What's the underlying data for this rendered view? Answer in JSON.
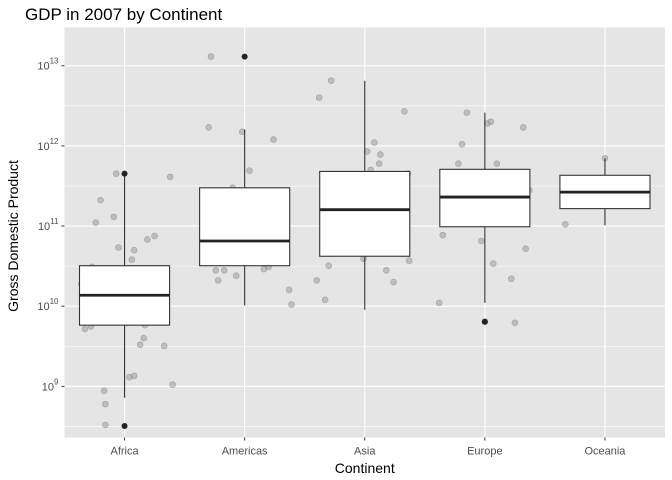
{
  "chart_data": {
    "type": "boxplot",
    "title": "GDP in 2007 by Continent",
    "xlabel": "Continent",
    "ylabel": "Gross Domestic Product",
    "y_scale": "log10",
    "ylim": [
      230000000.0,
      30000000000000.0
    ],
    "y_ticks": [
      {
        "value": 1000000000.0,
        "base": "10",
        "exp": "9"
      },
      {
        "value": 10000000000.0,
        "base": "10",
        "exp": "10"
      },
      {
        "value": 100000000000.0,
        "base": "10",
        "exp": "11"
      },
      {
        "value": 1000000000000.0,
        "base": "10",
        "exp": "12"
      },
      {
        "value": 10000000000000.0,
        "base": "10",
        "exp": "13"
      }
    ],
    "categories": [
      "Africa",
      "Americas",
      "Asia",
      "Europe",
      "Oceania"
    ],
    "grid": true,
    "colors": {
      "panel": "#e5e5e5",
      "grid": "#ffffff",
      "box_fill": "#ffffff",
      "box_line": "#333333",
      "median": "#222222",
      "jitter": "#8c8c8c",
      "outlier": "#222222"
    },
    "boxes": [
      {
        "category": "Africa",
        "lower_whisker": 720000000.0,
        "q1": 5800000000.0,
        "median": 13700000000.0,
        "q3": 32000000000.0,
        "upper_whisker": 430000000000.0,
        "outliers": [
          450000000000.0,
          320000000.0
        ]
      },
      {
        "category": "Americas",
        "lower_whisker": 10200000000.0,
        "q1": 32000000000.0,
        "median": 65000000000.0,
        "q3": 300000000000.0,
        "upper_whisker": 1600000000000.0,
        "outliers": [
          13000000000000.0
        ]
      },
      {
        "category": "Asia",
        "lower_whisker": 9000000000.0,
        "q1": 42000000000.0,
        "median": 160000000000.0,
        "q3": 480000000000.0,
        "upper_whisker": 6500000000000.0,
        "outliers": []
      },
      {
        "category": "Europe",
        "lower_whisker": 11000000000.0,
        "q1": 98000000000.0,
        "median": 230000000000.0,
        "q3": 510000000000.0,
        "upper_whisker": 2600000000000.0,
        "outliers": [
          6400000000.0
        ]
      },
      {
        "category": "Oceania",
        "lower_whisker": 102000000000.0,
        "q1": 165000000000.0,
        "median": 265000000000.0,
        "q3": 430000000000.0,
        "upper_whisker": 700000000000.0,
        "outliers": []
      }
    ],
    "points": [
      {
        "category": "Africa",
        "jitter": -0.36,
        "value": 19000000000.0
      },
      {
        "category": "Africa",
        "jitter": -0.31,
        "value": 15000000000.0
      },
      {
        "category": "Africa",
        "jitter": -0.27,
        "value": 31000000000.0
      },
      {
        "category": "Africa",
        "jitter": -0.24,
        "value": 110000000000.0
      },
      {
        "category": "Africa",
        "jitter": -0.2,
        "value": 210000000000.0
      },
      {
        "category": "Africa",
        "jitter": -0.33,
        "value": 5200000000.0
      },
      {
        "category": "Africa",
        "jitter": -0.28,
        "value": 5600000000.0
      },
      {
        "category": "Africa",
        "jitter": -0.25,
        "value": 10000000000.0
      },
      {
        "category": "Africa",
        "jitter": -0.22,
        "value": 16000000000.0
      },
      {
        "category": "Africa",
        "jitter": -0.18,
        "value": 25000000000.0
      },
      {
        "category": "Africa",
        "jitter": -0.15,
        "value": 9000000000.0
      },
      {
        "category": "Africa",
        "jitter": -0.12,
        "value": 23000000000.0
      },
      {
        "category": "Africa",
        "jitter": -0.09,
        "value": 130000000000.0
      },
      {
        "category": "Africa",
        "jitter": -0.05,
        "value": 54000000000.0
      },
      {
        "category": "Africa",
        "jitter": -0.02,
        "value": 6800000000.0
      },
      {
        "category": "Africa",
        "jitter": 0.02,
        "value": 6200000000.0
      },
      {
        "category": "Africa",
        "jitter": 0.05,
        "value": 12000000000.0
      },
      {
        "category": "Africa",
        "jitter": 0.08,
        "value": 50000000000.0
      },
      {
        "category": "Africa",
        "jitter": 0.11,
        "value": 28000000000.0
      },
      {
        "category": "Africa",
        "jitter": 0.13,
        "value": 3300000000.0
      },
      {
        "category": "Africa",
        "jitter": 0.16,
        "value": 4000000000.0
      },
      {
        "category": "Africa",
        "jitter": 0.19,
        "value": 68000000000.0
      },
      {
        "category": "Africa",
        "jitter": 0.22,
        "value": 14000000000.0
      },
      {
        "category": "Africa",
        "jitter": 0.25,
        "value": 75000000000.0
      },
      {
        "category": "Africa",
        "jitter": 0.28,
        "value": 16500000000.0
      },
      {
        "category": "Africa",
        "jitter": 0.31,
        "value": 22000000000.0
      },
      {
        "category": "Africa",
        "jitter": 0.33,
        "value": 3200000000.0
      },
      {
        "category": "Africa",
        "jitter": 0.35,
        "value": 21000000000.0
      },
      {
        "category": "Africa",
        "jitter": 0.38,
        "value": 410000000000.0
      },
      {
        "category": "Africa",
        "jitter": 0.4,
        "value": 1050000000.0
      },
      {
        "category": "Africa",
        "jitter": -0.17,
        "value": 880000000.0
      },
      {
        "category": "Africa",
        "jitter": -0.16,
        "value": 600000000.0
      },
      {
        "category": "Africa",
        "jitter": -0.16,
        "value": 330000000.0
      },
      {
        "category": "Africa",
        "jitter": 0.04,
        "value": 1300000000.0
      },
      {
        "category": "Africa",
        "jitter": 0.08,
        "value": 1350000000.0
      },
      {
        "category": "Africa",
        "jitter": 0.06,
        "value": 38000000000.0
      },
      {
        "category": "Africa",
        "jitter": -0.05,
        "value": 13000000000.0
      },
      {
        "category": "Africa",
        "jitter": 0.17,
        "value": 5800000000.0
      },
      {
        "category": "Africa",
        "jitter": -0.29,
        "value": 7800000000.0
      },
      {
        "category": "Africa",
        "jitter": -0.1,
        "value": 15500000000.0
      },
      {
        "category": "Africa",
        "jitter": 0.27,
        "value": 11000000000.0
      },
      {
        "category": "Africa",
        "jitter": -0.07,
        "value": 450000000000.0
      },
      {
        "category": "Americas",
        "jitter": -0.28,
        "value": 13000000000000.0
      },
      {
        "category": "Americas",
        "jitter": -0.3,
        "value": 1700000000000.0
      },
      {
        "category": "Americas",
        "jitter": -0.35,
        "value": 75000000000.0
      },
      {
        "category": "Americas",
        "jitter": -0.24,
        "value": 28000000000.0
      },
      {
        "category": "Americas",
        "jitter": -0.22,
        "value": 21000000000.0
      },
      {
        "category": "Americas",
        "jitter": -0.17,
        "value": 28000000000.0
      },
      {
        "category": "Americas",
        "jitter": -0.13,
        "value": 220000000000.0
      },
      {
        "category": "Americas",
        "jitter": -0.1,
        "value": 300000000000.0
      },
      {
        "category": "Americas",
        "jitter": -0.07,
        "value": 24000000000.0
      },
      {
        "category": "Americas",
        "jitter": -0.05,
        "value": 130000000000.0
      },
      {
        "category": "Americas",
        "jitter": 0.0,
        "value": 36000000000.0
      },
      {
        "category": "Americas",
        "jitter": 0.04,
        "value": 490000000000.0
      },
      {
        "category": "Americas",
        "jitter": 0.07,
        "value": 270000000000.0
      },
      {
        "category": "Americas",
        "jitter": 0.1,
        "value": 160000000000.0
      },
      {
        "category": "Americas",
        "jitter": 0.13,
        "value": 45000000000.0
      },
      {
        "category": "Americas",
        "jitter": 0.2,
        "value": 31000000000.0
      },
      {
        "category": "Americas",
        "jitter": 0.24,
        "value": 1200000000000.0
      },
      {
        "category": "Americas",
        "jitter": 0.33,
        "value": 64000000000.0
      },
      {
        "category": "Americas",
        "jitter": 0.37,
        "value": 16000000000.0
      },
      {
        "category": "Americas",
        "jitter": 0.39,
        "value": 10500000000.0
      },
      {
        "category": "Americas",
        "jitter": -0.02,
        "value": 1500000000000.0
      },
      {
        "category": "Americas",
        "jitter": 0.16,
        "value": 29000000000.0
      },
      {
        "category": "Asia",
        "jitter": -0.38,
        "value": 4000000000000.0
      },
      {
        "category": "Asia",
        "jitter": -0.28,
        "value": 6500000000000.0
      },
      {
        "category": "Asia",
        "jitter": -0.4,
        "value": 21000000000.0
      },
      {
        "category": "Asia",
        "jitter": -0.33,
        "value": 12000000000.0
      },
      {
        "category": "Asia",
        "jitter": -0.3,
        "value": 32000000000.0
      },
      {
        "category": "Asia",
        "jitter": -0.26,
        "value": 56000000000.0
      },
      {
        "category": "Asia",
        "jitter": -0.22,
        "value": 48000000000.0
      },
      {
        "category": "Asia",
        "jitter": -0.19,
        "value": 130000000000.0
      },
      {
        "category": "Asia",
        "jitter": -0.16,
        "value": 290000000000.0
      },
      {
        "category": "Asia",
        "jitter": -0.12,
        "value": 110000000000.0
      },
      {
        "category": "Asia",
        "jitter": -0.09,
        "value": 75000000000.0
      },
      {
        "category": "Asia",
        "jitter": -0.06,
        "value": 220000000000.0
      },
      {
        "category": "Asia",
        "jitter": -0.03,
        "value": 95000000000.0
      },
      {
        "category": "Asia",
        "jitter": 0.02,
        "value": 850000000000.0
      },
      {
        "category": "Asia",
        "jitter": 0.05,
        "value": 500000000000.0
      },
      {
        "category": "Asia",
        "jitter": 0.08,
        "value": 1100000000000.0
      },
      {
        "category": "Asia",
        "jitter": 0.12,
        "value": 600000000000.0
      },
      {
        "category": "Asia",
        "jitter": 0.15,
        "value": 150000000000.0
      },
      {
        "category": "Asia",
        "jitter": 0.18,
        "value": 28000000000.0
      },
      {
        "category": "Asia",
        "jitter": 0.2,
        "value": 300000000000.0
      },
      {
        "category": "Asia",
        "jitter": 0.24,
        "value": 20000000000.0
      },
      {
        "category": "Asia",
        "jitter": 0.27,
        "value": 220000000000.0
      },
      {
        "category": "Asia",
        "jitter": 0.3,
        "value": 65000000000.0
      },
      {
        "category": "Asia",
        "jitter": 0.33,
        "value": 2700000000000.0
      },
      {
        "category": "Asia",
        "jitter": 0.36,
        "value": 450000000000.0
      },
      {
        "category": "Asia",
        "jitter": 0.37,
        "value": 37000000000.0
      },
      {
        "category": "Asia",
        "jitter": 0.09,
        "value": 190000000000.0
      },
      {
        "category": "Asia",
        "jitter": -0.01,
        "value": 39000000000.0
      },
      {
        "category": "Asia",
        "jitter": 0.13,
        "value": 780000000000.0
      },
      {
        "category": "Europe",
        "jitter": -0.38,
        "value": 11000000000.0
      },
      {
        "category": "Europe",
        "jitter": -0.35,
        "value": 77000000000.0
      },
      {
        "category": "Europe",
        "jitter": -0.32,
        "value": 290000000000.0
      },
      {
        "category": "Europe",
        "jitter": -0.28,
        "value": 240000000000.0
      },
      {
        "category": "Europe",
        "jitter": -0.24,
        "value": 170000000000.0
      },
      {
        "category": "Europe",
        "jitter": -0.22,
        "value": 600000000000.0
      },
      {
        "category": "Europe",
        "jitter": -0.19,
        "value": 1050000000000.0
      },
      {
        "category": "Europe",
        "jitter": -0.15,
        "value": 2600000000000.0
      },
      {
        "category": "Europe",
        "jitter": -0.12,
        "value": 200000000000.0
      },
      {
        "category": "Europe",
        "jitter": -0.09,
        "value": 300000000000.0
      },
      {
        "category": "Europe",
        "jitter": -0.06,
        "value": 120000000000.0
      },
      {
        "category": "Europe",
        "jitter": -0.03,
        "value": 65000000000.0
      },
      {
        "category": "Europe",
        "jitter": 0.02,
        "value": 1900000000000.0
      },
      {
        "category": "Europe",
        "jitter": 0.05,
        "value": 2000000000000.0
      },
      {
        "category": "Europe",
        "jitter": 0.07,
        "value": 34000000000.0
      },
      {
        "category": "Europe",
        "jitter": 0.1,
        "value": 600000000000.0
      },
      {
        "category": "Europe",
        "jitter": 0.13,
        "value": 400000000000.0
      },
      {
        "category": "Europe",
        "jitter": 0.16,
        "value": 130000000000.0
      },
      {
        "category": "Europe",
        "jitter": 0.18,
        "value": 115000000000.0
      },
      {
        "category": "Europe",
        "jitter": 0.22,
        "value": 22000000000.0
      },
      {
        "category": "Europe",
        "jitter": 0.25,
        "value": 6200000000.0
      },
      {
        "category": "Europe",
        "jitter": 0.28,
        "value": 200000000000.0
      },
      {
        "category": "Europe",
        "jitter": 0.32,
        "value": 1700000000000.0
      },
      {
        "category": "Europe",
        "jitter": 0.34,
        "value": 52000000000.0
      },
      {
        "category": "Europe",
        "jitter": 0.37,
        "value": 280000000000.0
      },
      {
        "category": "Europe",
        "jitter": -0.21,
        "value": 350000000000.0
      },
      {
        "category": "Europe",
        "jitter": 0.0,
        "value": 6400000000.0
      },
      {
        "category": "Oceania",
        "jitter": -0.33,
        "value": 105000000000.0
      },
      {
        "category": "Oceania",
        "jitter": 0.0,
        "value": 700000000000.0
      }
    ]
  }
}
